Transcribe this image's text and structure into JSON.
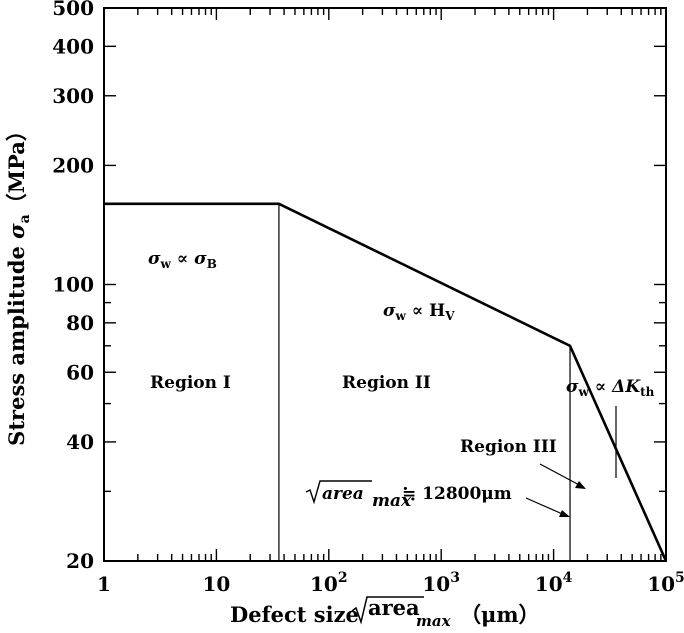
{
  "chart_data": {
    "type": "line",
    "x_scale": "log",
    "y_scale": "log",
    "xlim": [
      1,
      100000
    ],
    "ylim": [
      20,
      500
    ],
    "grid": false,
    "legend": "none",
    "series": [
      {
        "x": [
          1,
          36,
          14000,
          100000
        ],
        "y": [
          160,
          160,
          70,
          20
        ]
      }
    ],
    "dividers_x": [
      36,
      14000
    ],
    "x_ticks": [
      {
        "value": 1,
        "base": "1",
        "exp": ""
      },
      {
        "value": 10,
        "base": "10",
        "exp": ""
      },
      {
        "value": 100,
        "base": "10",
        "exp": "2"
      },
      {
        "value": 1000,
        "base": "10",
        "exp": "3"
      },
      {
        "value": 10000,
        "base": "10",
        "exp": "4"
      },
      {
        "value": 100000,
        "base": "10",
        "exp": "5"
      }
    ],
    "y_ticks": [
      {
        "value": 20,
        "label": "20"
      },
      {
        "value": 40,
        "label": "40"
      },
      {
        "value": 60,
        "label": "60"
      },
      {
        "value": 80,
        "label": "80"
      },
      {
        "value": 100,
        "label": "100"
      },
      {
        "value": 200,
        "label": "200"
      },
      {
        "value": 300,
        "label": "300"
      },
      {
        "value": 400,
        "label": "400"
      },
      {
        "value": 500,
        "label": "500"
      }
    ],
    "xlabel": {
      "text": "Defect size ",
      "radicand": "area",
      "sub": "max",
      "unit": "（μm）"
    },
    "ylabel": {
      "text": "Stress amplitude ",
      "sym": "σ",
      "sub": "a",
      "unit": "（MPa）"
    },
    "region_labels": {
      "region1": "Region I",
      "region2": "Region II",
      "region3": "Region  III"
    },
    "relations": {
      "r1": {
        "lhs": "σ",
        "lhs_sub": "w",
        "op": " ∝ ",
        "rhs": "σ",
        "rhs_sub": "B"
      },
      "r2": {
        "lhs": "σ",
        "lhs_sub": "w",
        "op": " ∝ ",
        "rhs": "H",
        "rhs_sub": "V"
      },
      "r3": {
        "lhs": "σ",
        "lhs_sub": "w",
        "op": " ∝ ",
        "rhs": "ΔK",
        "rhs_sub": "th"
      }
    },
    "transition_annotation": {
      "radicand": "area",
      "sub": "max",
      "value": " ≒ 12800μm"
    }
  }
}
